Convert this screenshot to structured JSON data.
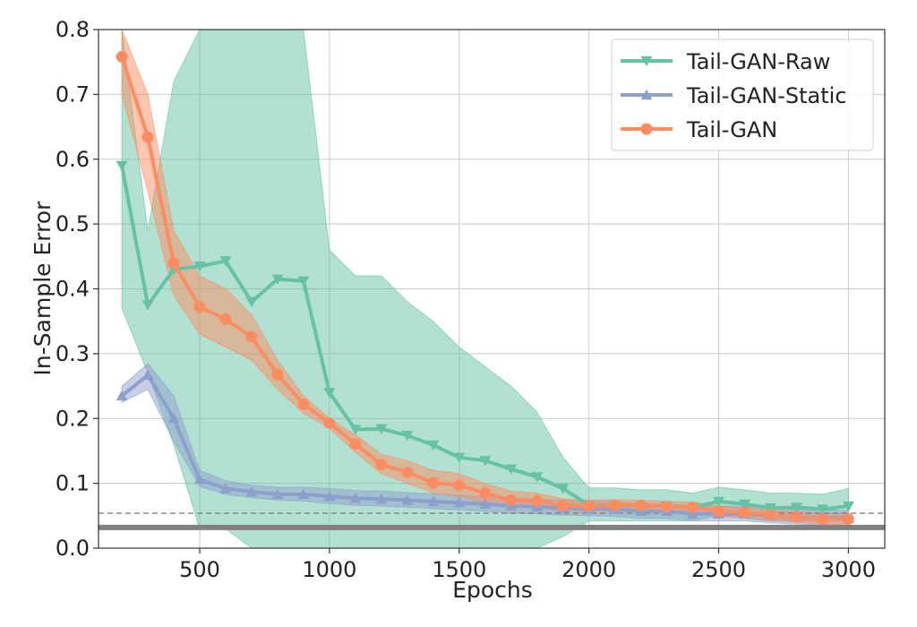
{
  "chart_data": {
    "type": "line",
    "xlabel": "Epochs",
    "ylabel": "In-Sample Error",
    "xlim": [
      110,
      3140
    ],
    "ylim": [
      0.0,
      0.8
    ],
    "xticks": [
      500,
      1000,
      1500,
      2000,
      2500,
      3000
    ],
    "yticks": [
      0.0,
      0.1,
      0.2,
      0.3,
      0.4,
      0.5,
      0.6,
      0.7,
      0.8
    ],
    "grid": true,
    "legend_position": "top-right",
    "x": [
      200,
      300,
      400,
      500,
      600,
      700,
      800,
      900,
      1000,
      1100,
      1200,
      1300,
      1400,
      1500,
      1600,
      1700,
      1800,
      1900,
      2000,
      2100,
      2200,
      2300,
      2400,
      2500,
      2600,
      2700,
      2800,
      2900,
      3000
    ],
    "series": [
      {
        "name": "Tail-GAN-Raw",
        "color": "#66c2a5",
        "marker": "triangle-down",
        "values": [
          0.59,
          0.375,
          0.43,
          0.435,
          0.443,
          0.38,
          0.415,
          0.412,
          0.24,
          0.183,
          0.184,
          0.174,
          0.159,
          0.14,
          0.135,
          0.122,
          0.11,
          0.092,
          0.066,
          0.066,
          0.065,
          0.065,
          0.063,
          0.072,
          0.068,
          0.062,
          0.063,
          0.06,
          0.065
        ],
        "upper": [
          0.8,
          0.49,
          0.72,
          0.8,
          0.8,
          0.8,
          0.8,
          0.8,
          0.46,
          0.42,
          0.42,
          0.38,
          0.35,
          0.31,
          0.28,
          0.25,
          0.21,
          0.14,
          0.093,
          0.093,
          0.09,
          0.09,
          0.085,
          0.094,
          0.09,
          0.085,
          0.085,
          0.083,
          0.092
        ],
        "lower": [
          0.37,
          0.27,
          0.16,
          0.03,
          0.03,
          0.0,
          0.0,
          0.0,
          0.0,
          0.0,
          0.0,
          0.0,
          0.0,
          0.0,
          0.0,
          0.0,
          0.0,
          0.018,
          0.042,
          0.042,
          0.042,
          0.042,
          0.042,
          0.05,
          0.046,
          0.042,
          0.042,
          0.04,
          0.042
        ]
      },
      {
        "name": "Tail-GAN-Static",
        "color": "#8da0cb",
        "marker": "triangle-up",
        "values": [
          0.235,
          0.267,
          0.2,
          0.106,
          0.092,
          0.087,
          0.083,
          0.083,
          0.08,
          0.077,
          0.076,
          0.074,
          0.072,
          0.07,
          0.068,
          0.065,
          0.064,
          0.062,
          0.061,
          0.06,
          0.057,
          0.057,
          0.053,
          0.053,
          0.053,
          0.05,
          0.048,
          0.047,
          0.046
        ],
        "upper": [
          0.25,
          0.285,
          0.235,
          0.12,
          0.104,
          0.097,
          0.094,
          0.094,
          0.092,
          0.089,
          0.088,
          0.086,
          0.084,
          0.082,
          0.08,
          0.077,
          0.076,
          0.074,
          0.073,
          0.072,
          0.069,
          0.069,
          0.065,
          0.065,
          0.065,
          0.062,
          0.06,
          0.059,
          0.058
        ],
        "lower": [
          0.225,
          0.245,
          0.165,
          0.095,
          0.083,
          0.078,
          0.074,
          0.073,
          0.069,
          0.066,
          0.065,
          0.063,
          0.061,
          0.059,
          0.057,
          0.054,
          0.053,
          0.051,
          0.05,
          0.049,
          0.046,
          0.046,
          0.042,
          0.042,
          0.042,
          0.039,
          0.037,
          0.036,
          0.035
        ]
      },
      {
        "name": "Tail-GAN",
        "color": "#fc8d62",
        "marker": "circle",
        "values": [
          0.758,
          0.634,
          0.44,
          0.372,
          0.353,
          0.326,
          0.268,
          0.222,
          0.193,
          0.161,
          0.129,
          0.117,
          0.101,
          0.097,
          0.085,
          0.074,
          0.073,
          0.066,
          0.065,
          0.066,
          0.066,
          0.064,
          0.063,
          0.057,
          0.055,
          0.051,
          0.048,
          0.045,
          0.045
        ],
        "upper": [
          0.8,
          0.7,
          0.49,
          0.42,
          0.4,
          0.36,
          0.29,
          0.235,
          0.2,
          0.175,
          0.145,
          0.135,
          0.12,
          0.115,
          0.1,
          0.088,
          0.085,
          0.076,
          0.074,
          0.075,
          0.074,
          0.072,
          0.071,
          0.065,
          0.063,
          0.059,
          0.056,
          0.053,
          0.053
        ],
        "lower": [
          0.7,
          0.55,
          0.39,
          0.33,
          0.31,
          0.29,
          0.245,
          0.208,
          0.185,
          0.148,
          0.115,
          0.1,
          0.085,
          0.08,
          0.07,
          0.062,
          0.062,
          0.057,
          0.056,
          0.057,
          0.058,
          0.056,
          0.055,
          0.049,
          0.047,
          0.043,
          0.04,
          0.037,
          0.037
        ]
      }
    ],
    "reference_lines": [
      {
        "y": 0.054,
        "style": "dashed",
        "color": "#808080"
      },
      {
        "y": 0.032,
        "style": "solid-thick",
        "color": "#808080"
      }
    ]
  }
}
